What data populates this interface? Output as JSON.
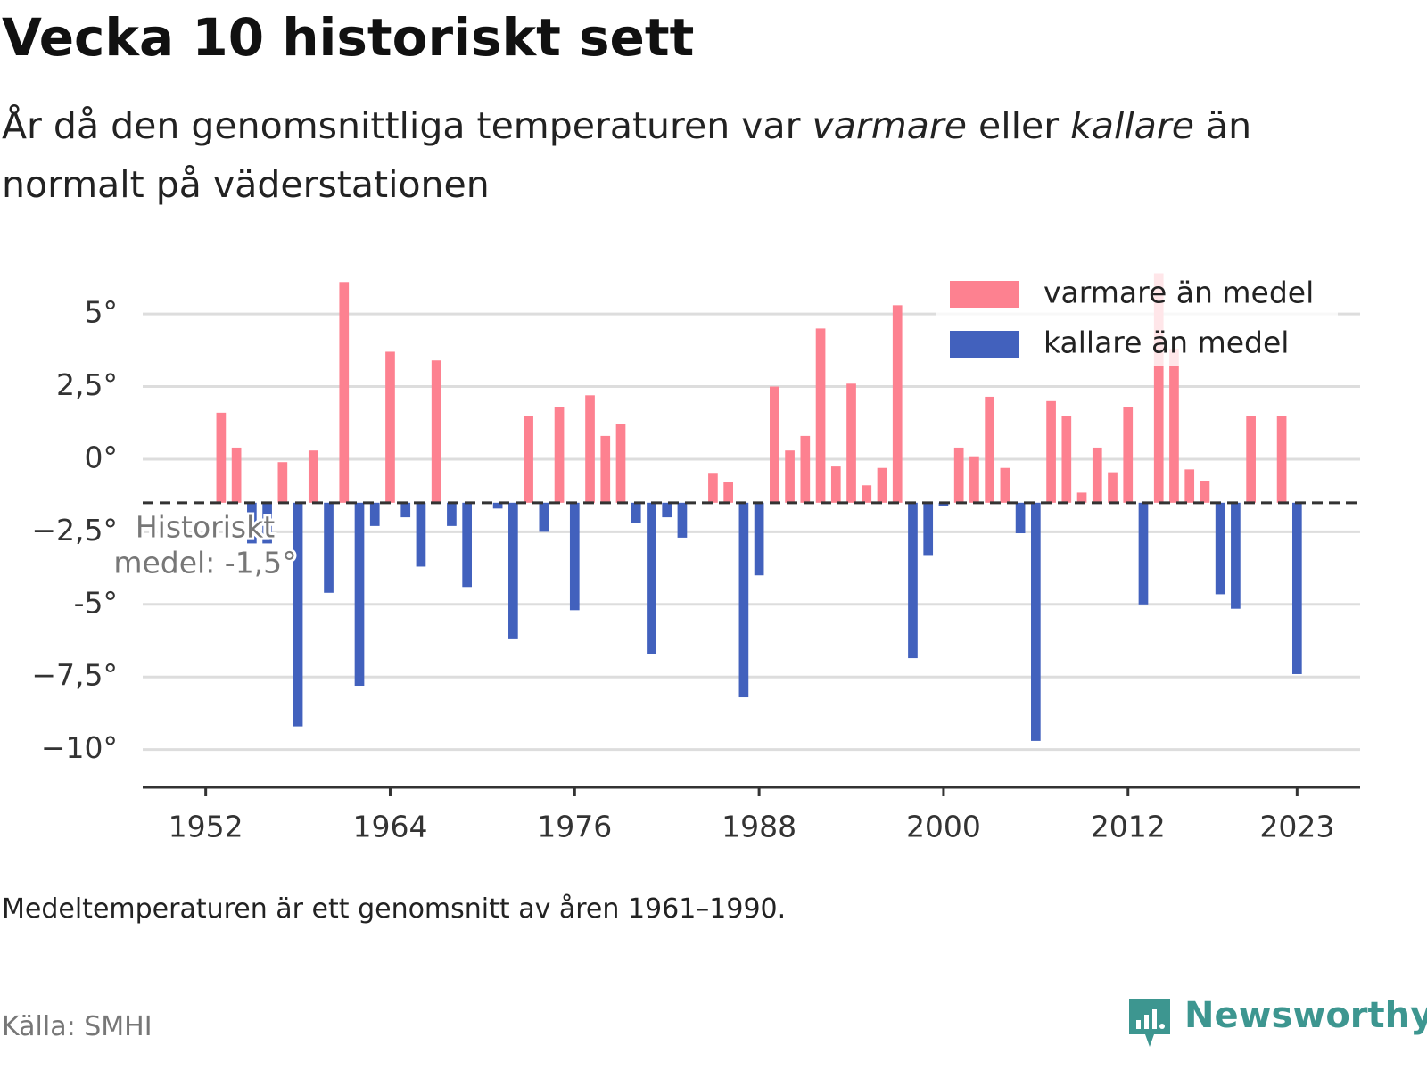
{
  "header": {
    "title": "Vecka 10 historiskt sett",
    "subtitle": [
      "År då den genomsnittliga temperaturen var",
      "varmare",
      "eller",
      "kallare",
      "än normalt på väderstationen"
    ]
  },
  "chart_data": {
    "type": "bar",
    "x": [
      1952,
      1953,
      1954,
      1955,
      1956,
      1957,
      1958,
      1959,
      1960,
      1961,
      1962,
      1963,
      1964,
      1965,
      1966,
      1967,
      1968,
      1969,
      1970,
      1971,
      1972,
      1973,
      1974,
      1975,
      1976,
      1977,
      1978,
      1979,
      1980,
      1981,
      1982,
      1983,
      1984,
      1985,
      1986,
      1987,
      1988,
      1989,
      1990,
      1991,
      1992,
      1993,
      1994,
      1995,
      1996,
      1997,
      1998,
      1999,
      2000,
      2001,
      2002,
      2003,
      2004,
      2005,
      2006,
      2007,
      2008,
      2009,
      2010,
      2011,
      2012,
      2013,
      2014,
      2015,
      2016,
      2017,
      2018,
      2019,
      2020,
      2021,
      2022,
      2023
    ],
    "series": [
      {
        "name": "varmare än medel",
        "color": "#fd8190",
        "values": [
          null,
          1.6,
          0.4,
          null,
          null,
          -0.1,
          null,
          0.3,
          null,
          6.1,
          null,
          null,
          3.7,
          null,
          null,
          3.4,
          null,
          null,
          null,
          null,
          null,
          1.5,
          null,
          1.8,
          null,
          2.2,
          0.8,
          1.2,
          null,
          null,
          null,
          null,
          null,
          -0.5,
          -0.8,
          null,
          null,
          2.5,
          0.3,
          0.8,
          4.5,
          -0.25,
          2.6,
          -0.9,
          -0.3,
          5.3,
          null,
          null,
          null,
          0.4,
          0.1,
          2.15,
          -0.3,
          null,
          null,
          2.0,
          1.5,
          -1.15,
          0.4,
          -0.45,
          1.8,
          null,
          6.4,
          3.8,
          -0.35,
          -0.75,
          null,
          null,
          1.5,
          null,
          1.5,
          null
        ]
      },
      {
        "name": "kallare än medel",
        "color": "#4261bd",
        "values": [
          -1.5,
          null,
          null,
          -2.9,
          -2.9,
          null,
          -9.2,
          null,
          -4.6,
          null,
          -7.8,
          -2.3,
          null,
          -2.0,
          -3.7,
          null,
          -2.3,
          -4.4,
          -1.5,
          -1.7,
          -6.2,
          null,
          -2.5,
          null,
          -5.2,
          null,
          null,
          null,
          -2.2,
          -6.7,
          -2.0,
          -2.7,
          -1.5,
          null,
          null,
          -8.2,
          -4.0,
          null,
          null,
          null,
          null,
          null,
          null,
          null,
          null,
          null,
          -6.85,
          -3.3,
          -1.6,
          null,
          null,
          null,
          null,
          -2.55,
          -9.7,
          null,
          null,
          null,
          null,
          null,
          null,
          -5.0,
          null,
          null,
          null,
          null,
          -4.65,
          -5.15,
          null,
          -1.5,
          null,
          -7.4
        ]
      }
    ],
    "baseline": -1.5,
    "baseline_label": [
      "Historiskt",
      "medel: -1,5°"
    ],
    "xlim": [
      1947.9,
      2027.1
    ],
    "xticks": [
      1952,
      1964,
      1976,
      1988,
      2000,
      2012,
      2023
    ],
    "ylim": [
      -11.3,
      6.6
    ],
    "yticks": [
      {
        "value": 5,
        "label": "5°"
      },
      {
        "value": 2.5,
        "label": "2,5°"
      },
      {
        "value": 0,
        "label": "0°"
      },
      {
        "value": -2.5,
        "label": "−2,5°"
      },
      {
        "value": -5,
        "label": "-5°"
      },
      {
        "value": -7.5,
        "label": "−7,5°"
      },
      {
        "value": -10,
        "label": "−10°"
      }
    ],
    "grid": true,
    "legend": "upper right"
  },
  "footer": {
    "note": "Medeltemperaturen är ett genomsnitt av åren 1961–1990.",
    "source": "Källa: SMHI",
    "brand": "Newsworthy"
  }
}
